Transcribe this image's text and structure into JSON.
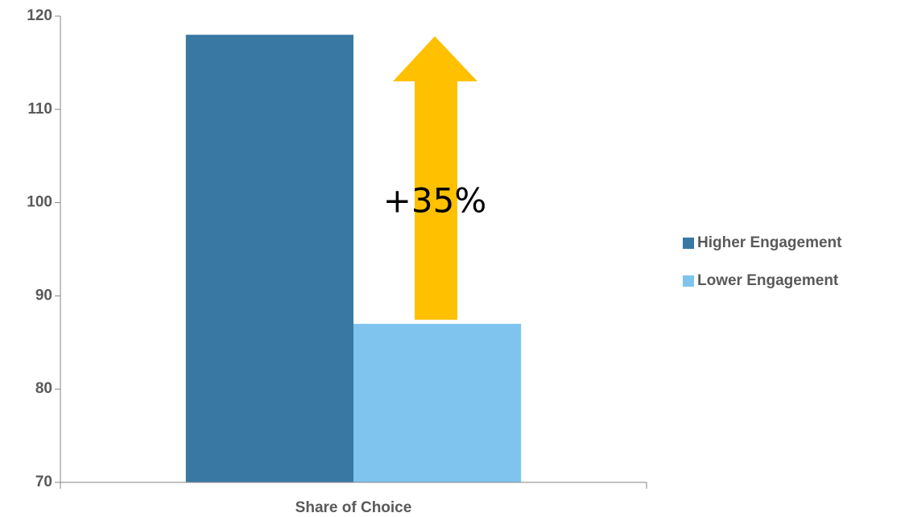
{
  "chart_data": {
    "type": "bar",
    "categories": [
      "Share of Choice"
    ],
    "series": [
      {
        "name": "Higher Engagement",
        "color": "#3a78a4",
        "values": [
          118
        ]
      },
      {
        "name": "Lower Engagement",
        "color": "#7fc4ef",
        "values": [
          87
        ]
      }
    ],
    "ylim": [
      70,
      120
    ],
    "yticks": [
      70,
      80,
      90,
      100,
      110,
      120
    ],
    "annotations": [
      "+35%"
    ],
    "legend": "right"
  }
}
